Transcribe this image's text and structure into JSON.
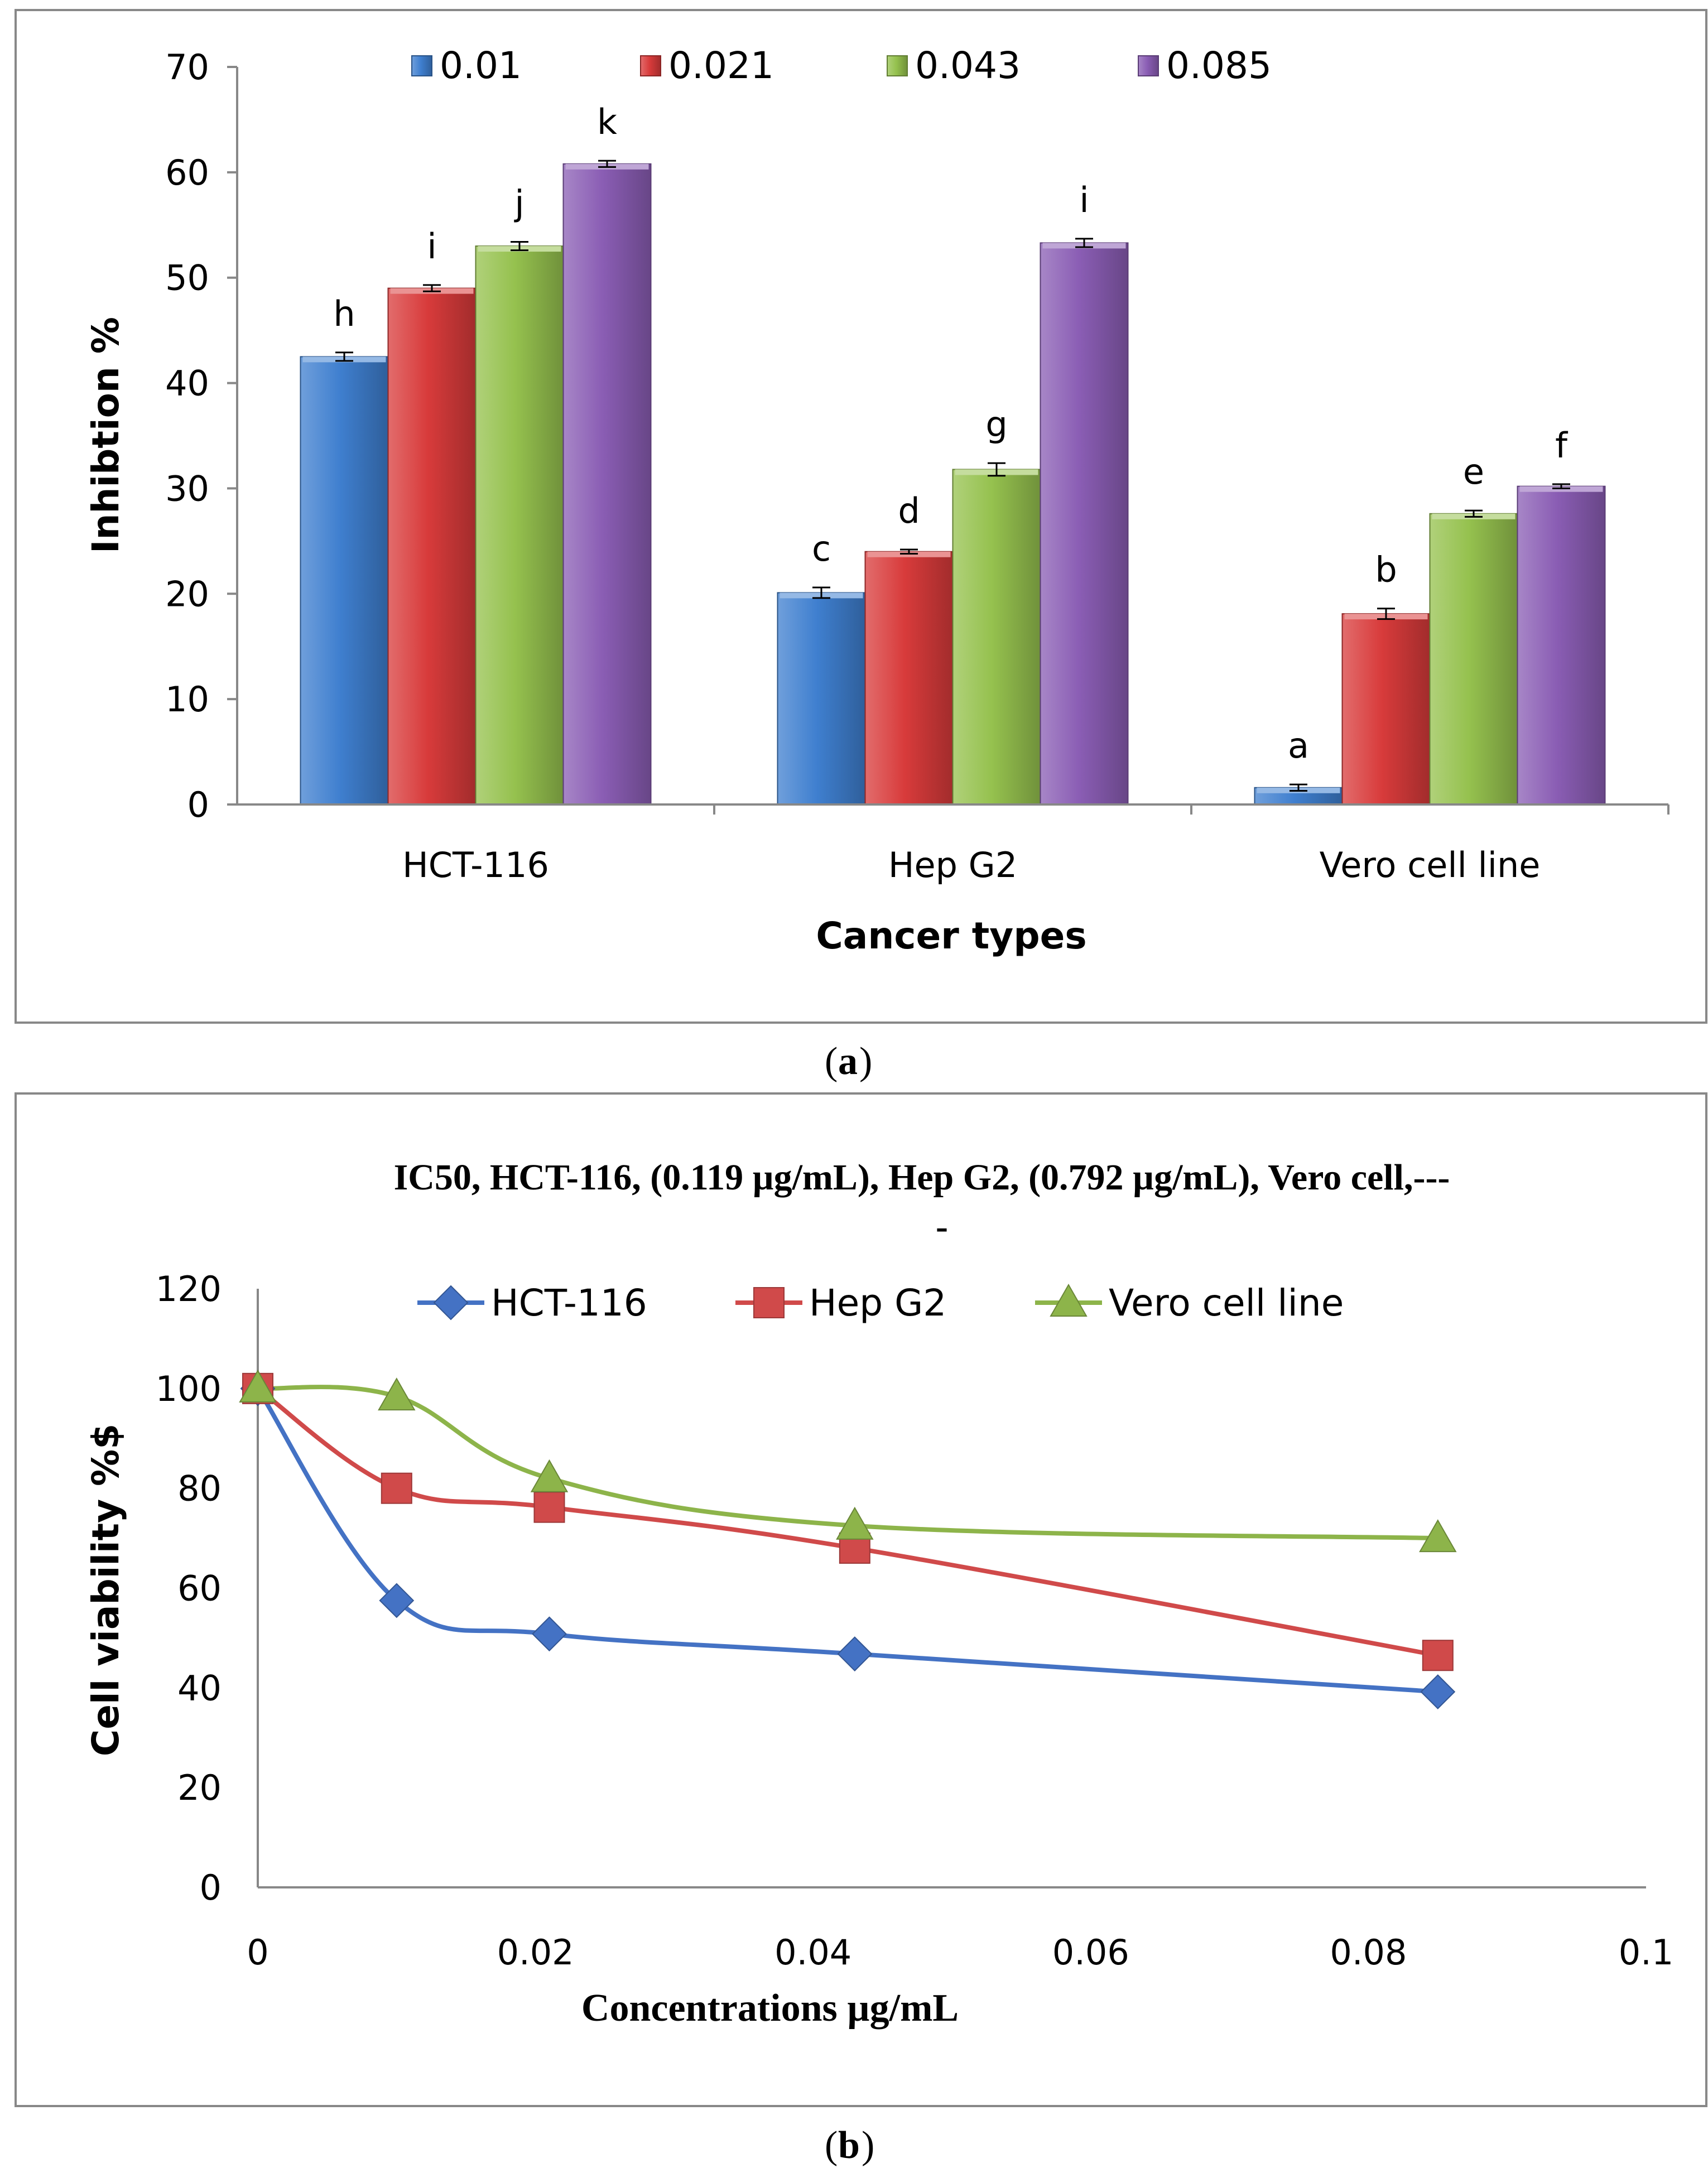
{
  "chart_data": [
    {
      "type": "bar",
      "panel_label": "a",
      "xlabel": "Cancer types",
      "ylabel": "Inhibtion %",
      "ylim": [
        0,
        70
      ],
      "yticks": [
        0,
        10,
        20,
        30,
        40,
        50,
        60,
        70
      ],
      "categories": [
        "HCT-116",
        "Hep G2",
        "Vero cell line"
      ],
      "series": [
        {
          "name": "0.01",
          "color": "#3f7fcf",
          "values": [
            42.5,
            20.1,
            1.6
          ],
          "errors": [
            0.4,
            0.5,
            0.3
          ],
          "letters": [
            "h",
            "c",
            "a"
          ]
        },
        {
          "name": "0.021",
          "color": "#d83b3b",
          "values": [
            49.0,
            24.0,
            18.1
          ],
          "errors": [
            0.3,
            0.2,
            0.5
          ],
          "letters": [
            "i",
            "d",
            "b"
          ]
        },
        {
          "name": "0.043",
          "color": "#95c14e",
          "values": [
            53.0,
            31.8,
            27.6
          ],
          "errors": [
            0.4,
            0.6,
            0.3
          ],
          "letters": [
            "j",
            "g",
            "e"
          ]
        },
        {
          "name": "0.085",
          "color": "#8a5db4",
          "values": [
            60.8,
            53.3,
            30.2
          ],
          "errors": [
            0.3,
            0.4,
            0.2
          ],
          "letters": [
            "k",
            "i",
            "f"
          ]
        }
      ],
      "grid": false,
      "legend": "top"
    },
    {
      "type": "line",
      "panel_label": "b",
      "title_line1": "IC50, HCT-116, (0.119 µg/mL), Hep G2, (0.792 µg/mL), Vero cell,---",
      "title_line2": "-",
      "xlabel": "Concentrations µg/mL",
      "ylabel": "Cell viability %$",
      "xlim": [
        0,
        0.1
      ],
      "ylim": [
        0,
        120
      ],
      "xticks": [
        "0",
        "0.02",
        "0.04",
        "0.06",
        "0.08",
        "0.1"
      ],
      "yticks": [
        0,
        20,
        40,
        60,
        80,
        100,
        120
      ],
      "x": [
        0,
        0.01,
        0.021,
        0.043,
        0.085
      ],
      "series": [
        {
          "name": "HCT-116",
          "color": "#4472c4",
          "marker": "diamond",
          "values": [
            100,
            57.5,
            50.8,
            46.8,
            39.2
          ]
        },
        {
          "name": "Hep G2",
          "color": "#d04a4a",
          "marker": "square",
          "values": [
            100,
            80,
            76.2,
            68.0,
            46.5
          ]
        },
        {
          "name": "Vero cell line",
          "color": "#8db44a",
          "marker": "triangle",
          "values": [
            100,
            98.4,
            82.0,
            72.5,
            70.0
          ]
        }
      ],
      "grid": false,
      "legend": "top"
    }
  ]
}
